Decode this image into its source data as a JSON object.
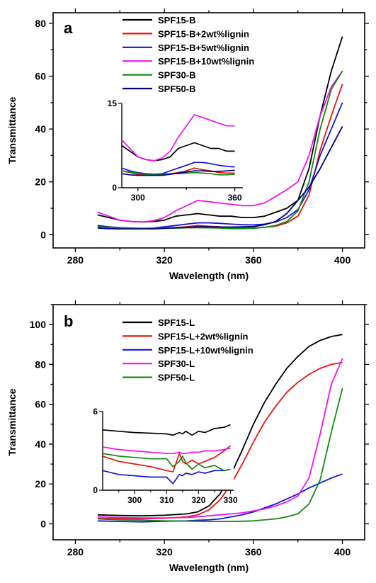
{
  "chart_data": [
    {
      "type": "line",
      "panel_label": "a",
      "xlabel": "Wavelength (nm)",
      "ylabel": "Transmittance",
      "xlim": [
        270,
        410
      ],
      "ylim": [
        -5,
        84
      ],
      "xticks": [
        280,
        320,
        360,
        400
      ],
      "yticks": [
        0,
        20,
        40,
        60,
        80
      ],
      "legend_position": "top-center",
      "series": [
        {
          "name": "SPF15-B",
          "color": "#000000",
          "x": [
            290,
            295,
            300,
            305,
            310,
            315,
            320,
            325,
            330,
            335,
            340,
            345,
            350,
            355,
            360,
            365,
            370,
            375,
            380,
            385,
            390,
            395,
            400
          ],
          "y": [
            7.5,
            6.5,
            5.5,
            5,
            4.8,
            5,
            5.5,
            7,
            7.5,
            8,
            7.5,
            7,
            7,
            6.5,
            6.5,
            7,
            8.5,
            10,
            13,
            25,
            45,
            62,
            75
          ]
        },
        {
          "name": "SPF15-B+2wt%lignin",
          "color": "#e8140c",
          "x": [
            290,
            295,
            300,
            305,
            310,
            315,
            320,
            325,
            330,
            335,
            340,
            345,
            350,
            355,
            360,
            365,
            370,
            375,
            380,
            385,
            390,
            395,
            400
          ],
          "y": [
            3,
            2.7,
            2.4,
            2.3,
            2.2,
            2.3,
            2.5,
            2.7,
            3,
            3.5,
            3.2,
            3,
            2.7,
            2.6,
            2.6,
            2.8,
            3.2,
            4.5,
            7,
            15,
            32,
            45,
            57
          ]
        },
        {
          "name": "SPF15-B+5wt%lignin",
          "color": "#1414e0",
          "x": [
            290,
            295,
            300,
            305,
            310,
            315,
            320,
            325,
            330,
            335,
            340,
            345,
            350,
            355,
            360,
            365,
            370,
            375,
            380,
            385,
            390,
            395,
            400
          ],
          "y": [
            3.5,
            3,
            2.7,
            2.5,
            2.4,
            2.5,
            3,
            3.5,
            4,
            4.5,
            4.5,
            4.3,
            4,
            3.8,
            3.7,
            4,
            4.8,
            6.5,
            9.5,
            17,
            30,
            40,
            50
          ]
        },
        {
          "name": "SPF15-B+10wt%lignin",
          "color": "#ee14ee",
          "x": [
            290,
            295,
            300,
            305,
            310,
            315,
            320,
            325,
            330,
            335,
            340,
            345,
            350,
            355,
            360,
            365,
            370,
            375,
            380,
            385,
            390,
            395,
            400
          ],
          "y": [
            8.5,
            7,
            5.5,
            5,
            4.8,
            5.3,
            6.5,
            9,
            11,
            13,
            12.5,
            12,
            11.5,
            11,
            11,
            12,
            14.5,
            17,
            20,
            30,
            45,
            56,
            62
          ]
        },
        {
          "name": "SPF30-B",
          "color": "#148a14",
          "x": [
            290,
            295,
            300,
            305,
            310,
            315,
            320,
            325,
            330,
            335,
            340,
            345,
            350,
            355,
            360,
            365,
            370,
            375,
            380,
            385,
            390,
            395,
            400
          ],
          "y": [
            3,
            2.8,
            2.6,
            2.4,
            2.3,
            2.4,
            2.5,
            2.5,
            2.6,
            2.7,
            2.6,
            2.5,
            2.3,
            2.3,
            2.4,
            2.8,
            3.5,
            5,
            9,
            20,
            40,
            55,
            62
          ]
        },
        {
          "name": "SPF50-B",
          "color": "#000080",
          "x": [
            290,
            295,
            300,
            305,
            310,
            315,
            320,
            325,
            330,
            335,
            340,
            345,
            350,
            355,
            360,
            365,
            370,
            375,
            380,
            385,
            390,
            395,
            400
          ],
          "y": [
            2.5,
            2.3,
            2.2,
            2.2,
            2.2,
            2.2,
            2.4,
            2.6,
            2.8,
            3,
            3,
            2.9,
            2.9,
            3,
            3.1,
            3.8,
            5,
            8,
            13,
            18,
            25,
            33,
            41
          ]
        }
      ],
      "inset": {
        "xlim": [
          290,
          365
        ],
        "ylim": [
          0,
          15
        ],
        "xticks": [
          300,
          360
        ],
        "yticks": [
          0,
          15
        ],
        "series": [
          {
            "color": "#000000",
            "x": [
              290,
              295,
              300,
              305,
              310,
              315,
              320,
              325,
              330,
              335,
              340,
              345,
              350,
              355,
              360
            ],
            "y": [
              7.5,
              6.5,
              5.5,
              5,
              4.8,
              5,
              5.5,
              7,
              7.5,
              8,
              7.5,
              7,
              7,
              6.5,
              6.5
            ]
          },
          {
            "color": "#e8140c",
            "x": [
              290,
              295,
              300,
              305,
              310,
              315,
              320,
              325,
              330,
              335,
              340,
              345,
              350,
              355,
              360
            ],
            "y": [
              3,
              2.7,
              2.4,
              2.3,
              2.2,
              2.3,
              2.5,
              2.7,
              3,
              3.5,
              3.2,
              3,
              2.7,
              2.6,
              2.6
            ]
          },
          {
            "color": "#1414e0",
            "x": [
              290,
              295,
              300,
              305,
              310,
              315,
              320,
              325,
              330,
              335,
              340,
              345,
              350,
              355,
              360
            ],
            "y": [
              3.5,
              3,
              2.7,
              2.5,
              2.4,
              2.5,
              3,
              3.5,
              4,
              4.5,
              4.5,
              4.3,
              4,
              3.8,
              3.7
            ]
          },
          {
            "color": "#ee14ee",
            "x": [
              290,
              295,
              300,
              305,
              310,
              315,
              320,
              325,
              330,
              335,
              340,
              345,
              350,
              355,
              360
            ],
            "y": [
              8.5,
              7,
              5.5,
              5,
              4.8,
              5.3,
              6.5,
              9,
              11,
              13,
              12.5,
              12,
              11.5,
              11,
              11
            ]
          },
          {
            "color": "#148a14",
            "x": [
              290,
              295,
              300,
              305,
              310,
              315,
              320,
              325,
              330,
              335,
              340,
              345,
              350,
              355,
              360
            ],
            "y": [
              3,
              2.8,
              2.6,
              2.4,
              2.3,
              2.4,
              2.5,
              2.5,
              2.6,
              2.7,
              2.6,
              2.5,
              2.3,
              2.3,
              2.4
            ]
          },
          {
            "color": "#000080",
            "x": [
              290,
              295,
              300,
              305,
              310,
              315,
              320,
              325,
              330,
              335,
              340,
              345,
              350,
              355,
              360
            ],
            "y": [
              2.5,
              2.3,
              2.2,
              2.2,
              2.2,
              2.2,
              2.4,
              2.6,
              2.8,
              3,
              3,
              2.9,
              2.9,
              3,
              3.1
            ]
          }
        ]
      }
    },
    {
      "type": "line",
      "panel_label": "b",
      "xlabel": "Wavelength (nm)",
      "ylabel": "Transmittance",
      "xlim": [
        270,
        410
      ],
      "ylim": [
        -8,
        110
      ],
      "xticks": [
        280,
        320,
        360,
        400
      ],
      "yticks": [
        0,
        20,
        40,
        60,
        80,
        100
      ],
      "legend_position": "top-center",
      "series": [
        {
          "name": "SPF15-L",
          "color": "#000000",
          "x": [
            290,
            300,
            310,
            320,
            330,
            335,
            340,
            345,
            350,
            355,
            360,
            365,
            370,
            375,
            380,
            385,
            390,
            395,
            400
          ],
          "y": [
            4.5,
            4.2,
            4,
            4.3,
            5,
            6,
            9,
            15,
            25,
            37,
            50,
            61,
            70,
            78,
            84,
            89,
            92,
            94,
            95
          ]
        },
        {
          "name": "SPF15-L+2wt%lignin",
          "color": "#e8140c",
          "x": [
            290,
            300,
            310,
            320,
            330,
            335,
            340,
            345,
            350,
            355,
            360,
            365,
            370,
            375,
            380,
            385,
            390,
            395,
            400
          ],
          "y": [
            2.8,
            2.6,
            2.5,
            2.8,
            3.5,
            4.5,
            7,
            12,
            20,
            30,
            41,
            51,
            59,
            66,
            71,
            75,
            78,
            80,
            81
          ]
        },
        {
          "name": "SPF15-L+10wt%lignin",
          "color": "#1414e0",
          "x": [
            290,
            300,
            310,
            320,
            330,
            335,
            340,
            345,
            350,
            355,
            360,
            365,
            370,
            375,
            380,
            385,
            390,
            395,
            400
          ],
          "y": [
            1.5,
            1.2,
            1,
            1.3,
            1.5,
            1.8,
            2,
            2.5,
            3.5,
            4.5,
            6,
            8,
            10,
            12.5,
            15,
            18,
            20.5,
            23,
            25
          ]
        },
        {
          "name": "SPF30-L",
          "color": "#ee14ee",
          "x": [
            290,
            300,
            310,
            320,
            330,
            335,
            340,
            345,
            350,
            355,
            360,
            365,
            370,
            375,
            380,
            385,
            390,
            395,
            400
          ],
          "y": [
            3.5,
            3.2,
            3,
            3,
            3.2,
            3.5,
            4,
            4.5,
            5,
            5.5,
            6.5,
            7.5,
            9,
            11,
            14,
            23,
            45,
            70,
            83
          ]
        },
        {
          "name": "SPF50-L",
          "color": "#148a14",
          "x": [
            290,
            300,
            310,
            320,
            330,
            335,
            340,
            345,
            350,
            355,
            360,
            365,
            370,
            375,
            380,
            385,
            390,
            395,
            400
          ],
          "y": [
            2.5,
            2,
            1.8,
            1.5,
            1.4,
            1.3,
            1.2,
            1.2,
            1.2,
            1.3,
            1.5,
            2,
            2.5,
            3.5,
            5,
            10,
            22,
            46,
            68
          ]
        }
      ],
      "inset": {
        "xlim": [
          290,
          331
        ],
        "ylim": [
          0,
          6
        ],
        "xticks": [
          300,
          310,
          320,
          330
        ],
        "yticks": [
          0,
          6
        ],
        "series": [
          {
            "color": "#000000",
            "x": [
              290,
              295,
              300,
              305,
              310,
              312,
              314,
              315,
              316,
              318,
              320,
              322,
              325,
              328,
              330
            ],
            "y": [
              4.6,
              4.5,
              4.4,
              4.35,
              4.3,
              4.2,
              4.4,
              4.3,
              4.5,
              4.2,
              4.5,
              4.4,
              4.7,
              4.8,
              5.0
            ]
          },
          {
            "color": "#e8140c",
            "x": [
              290,
              295,
              300,
              305,
              310,
              312,
              314,
              315,
              316,
              318,
              320,
              322,
              325,
              328,
              330
            ],
            "y": [
              2.6,
              2.2,
              2.0,
              1.8,
              1.5,
              1.4,
              2.8,
              2.2,
              2.0,
              2.3,
              2.0,
              2.2,
              2.5,
              3.0,
              3.4
            ]
          },
          {
            "color": "#1414e0",
            "x": [
              290,
              295,
              300,
              305,
              310,
              312,
              314,
              315,
              316,
              318,
              320,
              322,
              325,
              328,
              330
            ],
            "y": [
              1.5,
              1.2,
              1.1,
              1.0,
              1.0,
              0.5,
              1.2,
              1.1,
              1.3,
              1.2,
              1.4,
              1.3,
              1.5,
              1.5,
              1.6
            ]
          },
          {
            "color": "#ee14ee",
            "x": [
              290,
              295,
              300,
              305,
              310,
              312,
              314,
              315,
              316,
              318,
              320,
              322,
              325,
              328,
              330
            ],
            "y": [
              3.3,
              3.1,
              3.0,
              2.9,
              2.8,
              2.8,
              2.9,
              2.8,
              2.8,
              2.9,
              2.9,
              3.0,
              3.0,
              3.1,
              3.2
            ]
          },
          {
            "color": "#148a14",
            "x": [
              290,
              295,
              300,
              305,
              310,
              312,
              314,
              315,
              316,
              318,
              320,
              322,
              325,
              328,
              330
            ],
            "y": [
              2.8,
              2.6,
              2.5,
              2.4,
              2.4,
              1.8,
              2.2,
              2.6,
              2.1,
              1.6,
              2.0,
              1.7,
              1.9,
              1.5,
              1.6
            ]
          }
        ]
      }
    }
  ]
}
